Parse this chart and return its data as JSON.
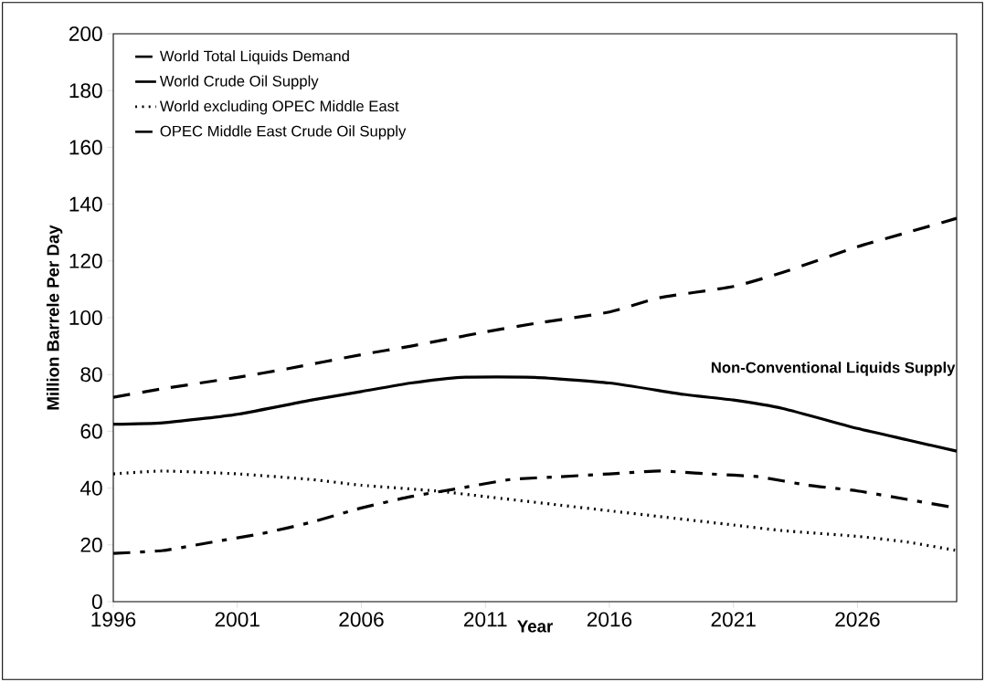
{
  "chart_data": {
    "type": "line",
    "xlabel": "Year",
    "ylabel": "Million Barrele Per Day",
    "xlim": [
      1996,
      2030
    ],
    "xticks": [
      1996,
      2001,
      2006,
      2011,
      2016,
      2021,
      2026
    ],
    "ylim": [
      0,
      200
    ],
    "yticks": [
      0,
      20,
      40,
      60,
      80,
      100,
      120,
      140,
      160,
      180,
      200
    ],
    "grid": false,
    "legend": "top left",
    "marker": "none",
    "annotations": [
      "Non-Conventional Liquids Supply"
    ],
    "series": [
      {
        "name": "World Total Liquids Demand",
        "color": "#000000",
        "line_style": "dashed",
        "x": [
          1996,
          1998,
          2001,
          2003,
          2006,
          2008,
          2011,
          2013,
          2016,
          2018,
          2021,
          2023,
          2026,
          2028,
          2030
        ],
        "values": [
          72,
          75,
          79,
          82,
          87,
          90,
          95,
          98,
          102,
          107,
          111,
          116,
          125,
          130,
          135
        ]
      },
      {
        "name": "World Crude Oil Supply",
        "color": "#000000",
        "line_style": "solid",
        "x": [
          1996,
          1998,
          2001,
          2004,
          2006,
          2008,
          2010,
          2013,
          2016,
          2019,
          2021,
          2023,
          2026,
          2028,
          2030
        ],
        "values": [
          62.5,
          63,
          66,
          71,
          74,
          77,
          79,
          79,
          77,
          73,
          71,
          68,
          61,
          57,
          53
        ]
      },
      {
        "name": "World excluding OPEC Middle East",
        "color": "#000000",
        "line_style": "dotted",
        "x": [
          1996,
          1998,
          2001,
          2004,
          2006,
          2009,
          2011,
          2014,
          2016,
          2018,
          2021,
          2023,
          2026,
          2028,
          2030
        ],
        "values": [
          45,
          46,
          45,
          43,
          41,
          39,
          37,
          34,
          32,
          30,
          27,
          25,
          23,
          21,
          18
        ]
      },
      {
        "name": "OPEC Middle East Crude Oil Supply",
        "color": "#000000",
        "line_style": "dashdot",
        "x": [
          1996,
          1998,
          2000,
          2002,
          2004,
          2006,
          2008,
          2010,
          2012,
          2014,
          2016,
          2018,
          2020,
          2022,
          2024,
          2026,
          2028,
          2030
        ],
        "values": [
          17,
          18,
          21,
          24,
          28,
          33,
          37,
          40,
          43,
          44,
          45,
          46,
          45,
          44,
          41,
          39,
          36,
          33
        ]
      }
    ]
  }
}
